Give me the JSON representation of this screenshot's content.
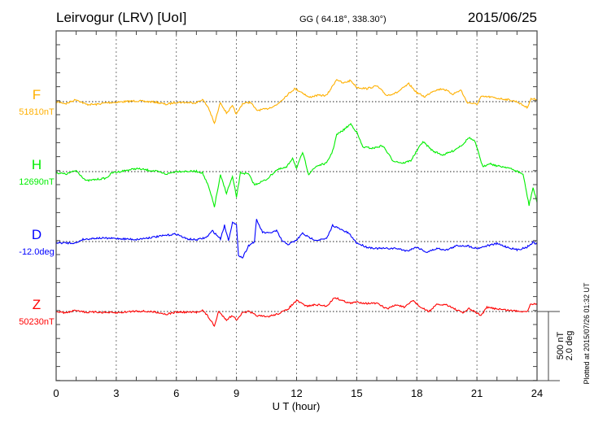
{
  "chart_data": {
    "type": "line",
    "title": "Leirvogur (LRV)  [UoI]",
    "coords": "GG ( 64.18°, 338.30°)",
    "date": "2015/06/25",
    "xlabel": "U T (hour)",
    "xlim": [
      0,
      24
    ],
    "xticks": [
      "0",
      "3",
      "6",
      "9",
      "12",
      "15",
      "18",
      "21",
      "24"
    ],
    "scale_bar": {
      "nT": 500,
      "label_nT": "500 nT",
      "label_deg": "2.0 deg"
    },
    "footer": "Plotted at 2015/07/26 01:32 UT",
    "grid": "dotted vertical every 3 h, dotted baseline per series",
    "series": [
      {
        "name": "F",
        "baseline_label": "51810nT",
        "unit": "nT",
        "color": "#ffb000",
        "points": [
          [
            0,
            0
          ],
          [
            0.5,
            -14
          ],
          [
            1,
            16
          ],
          [
            1.5,
            -20
          ],
          [
            2,
            -20
          ],
          [
            2.5,
            -8
          ],
          [
            3,
            -4
          ],
          [
            4,
            6
          ],
          [
            5,
            -4
          ],
          [
            5.5,
            -20
          ],
          [
            6,
            -4
          ],
          [
            7,
            -8
          ],
          [
            7.3,
            16
          ],
          [
            7.6,
            -43
          ],
          [
            7.9,
            -160
          ],
          [
            8.2,
            -4
          ],
          [
            8.5,
            -82
          ],
          [
            8.8,
            -33
          ],
          [
            9,
            -92
          ],
          [
            9.3,
            -14
          ],
          [
            9.7,
            -4
          ],
          [
            10,
            -63
          ],
          [
            10.5,
            -53
          ],
          [
            11,
            -24
          ],
          [
            11.5,
            45
          ],
          [
            11.9,
            94
          ],
          [
            12.3,
            65
          ],
          [
            12.6,
            31
          ],
          [
            13,
            45
          ],
          [
            13.5,
            45
          ],
          [
            13.8,
            114
          ],
          [
            14,
            163
          ],
          [
            14.3,
            133
          ],
          [
            14.7,
            153
          ],
          [
            15,
            104
          ],
          [
            15.5,
            94
          ],
          [
            16,
            114
          ],
          [
            16.5,
            45
          ],
          [
            17,
            65
          ],
          [
            17.6,
            129
          ],
          [
            18,
            65
          ],
          [
            18.4,
            35
          ],
          [
            18.8,
            78
          ],
          [
            19.3,
            94
          ],
          [
            19.8,
            55
          ],
          [
            20.2,
            84
          ],
          [
            20.5,
            -4
          ],
          [
            21,
            -20
          ],
          [
            21.2,
            35
          ],
          [
            21.6,
            35
          ],
          [
            22,
            25
          ],
          [
            22.5,
            16
          ],
          [
            23,
            0
          ],
          [
            23.5,
            -43
          ],
          [
            23.7,
            20
          ],
          [
            24,
            16
          ]
        ]
      },
      {
        "name": "H",
        "baseline_label": "12690nT",
        "unit": "nT",
        "color": "#00ee00",
        "points": [
          [
            0,
            -8
          ],
          [
            0.5,
            -18
          ],
          [
            1,
            8
          ],
          [
            1.5,
            -67
          ],
          [
            2,
            -57
          ],
          [
            2.5,
            -47
          ],
          [
            2.8,
            -8
          ],
          [
            3,
            -4
          ],
          [
            4,
            22
          ],
          [
            5,
            2
          ],
          [
            5.5,
            -18
          ],
          [
            6,
            2
          ],
          [
            7,
            2
          ],
          [
            7.3,
            -8
          ],
          [
            7.6,
            -106
          ],
          [
            7.9,
            -253
          ],
          [
            8.2,
            -27
          ],
          [
            8.5,
            -155
          ],
          [
            8.8,
            -37
          ],
          [
            9,
            -184
          ],
          [
            9.2,
            -8
          ],
          [
            9.6,
            -18
          ],
          [
            9.9,
            -96
          ],
          [
            10.5,
            -57
          ],
          [
            11,
            12
          ],
          [
            11.5,
            31
          ],
          [
            11.8,
            100
          ],
          [
            12,
            22
          ],
          [
            12.3,
            139
          ],
          [
            12.6,
            -18
          ],
          [
            13,
            41
          ],
          [
            13.5,
            61
          ],
          [
            13.8,
            149
          ],
          [
            14,
            267
          ],
          [
            14.3,
            296
          ],
          [
            14.7,
            345
          ],
          [
            15,
            286
          ],
          [
            15.3,
            178
          ],
          [
            15.8,
            169
          ],
          [
            16.3,
            188
          ],
          [
            16.8,
            80
          ],
          [
            17.3,
            61
          ],
          [
            17.7,
            80
          ],
          [
            18,
            149
          ],
          [
            18.3,
            218
          ],
          [
            18.8,
            149
          ],
          [
            19.3,
            120
          ],
          [
            19.8,
            149
          ],
          [
            20.3,
            198
          ],
          [
            20.6,
            247
          ],
          [
            20.9,
            218
          ],
          [
            21.3,
            31
          ],
          [
            21.6,
            61
          ],
          [
            22,
            41
          ],
          [
            22.5,
            31
          ],
          [
            23,
            2
          ],
          [
            23.3,
            -18
          ],
          [
            23.6,
            -243
          ],
          [
            23.8,
            -116
          ],
          [
            24,
            -223
          ]
        ]
      },
      {
        "name": "D",
        "baseline_label": "-12.0deg",
        "unit": "deg",
        "color": "#0000ff",
        "points": [
          [
            0,
            -0.04
          ],
          [
            1,
            -0.04
          ],
          [
            1.3,
            0.06
          ],
          [
            2,
            0.1
          ],
          [
            3,
            0.09
          ],
          [
            4,
            0.06
          ],
          [
            5,
            0.14
          ],
          [
            6,
            0.22
          ],
          [
            6.5,
            0.08
          ],
          [
            7,
            0.05
          ],
          [
            7.5,
            0.12
          ],
          [
            7.8,
            0.31
          ],
          [
            8.2,
            0.08
          ],
          [
            8.4,
            0.47
          ],
          [
            8.6,
            0.04
          ],
          [
            8.8,
            0.55
          ],
          [
            9,
            0.47
          ],
          [
            9.1,
            -0.39
          ],
          [
            9.3,
            -0.47
          ],
          [
            9.6,
            -0.12
          ],
          [
            9.9,
            0
          ],
          [
            10,
            0.63
          ],
          [
            10.3,
            0.27
          ],
          [
            10.6,
            0.24
          ],
          [
            11,
            0.31
          ],
          [
            11.3,
            0
          ],
          [
            11.6,
            -0.08
          ],
          [
            12,
            0.04
          ],
          [
            12.3,
            0.24
          ],
          [
            12.6,
            0.12
          ],
          [
            13,
            0.04
          ],
          [
            13.5,
            0.08
          ],
          [
            13.8,
            0.47
          ],
          [
            14.2,
            0.35
          ],
          [
            14.6,
            0.24
          ],
          [
            15,
            -0.04
          ],
          [
            15.5,
            -0.16
          ],
          [
            16,
            -0.2
          ],
          [
            16.5,
            -0.2
          ],
          [
            17,
            -0.2
          ],
          [
            17.5,
            -0.27
          ],
          [
            18,
            -0.16
          ],
          [
            18.5,
            -0.31
          ],
          [
            19,
            -0.2
          ],
          [
            19.5,
            -0.24
          ],
          [
            20,
            -0.12
          ],
          [
            20.5,
            -0.12
          ],
          [
            21,
            -0.2
          ],
          [
            21.5,
            -0.12
          ],
          [
            22,
            -0.06
          ],
          [
            22.5,
            -0.16
          ],
          [
            23,
            -0.24
          ],
          [
            23.5,
            -0.16
          ],
          [
            23.8,
            -0.02
          ],
          [
            24,
            -0.08
          ]
        ]
      },
      {
        "name": "Z",
        "baseline_label": "50230nT",
        "unit": "nT",
        "color": "#ff0000",
        "points": [
          [
            0,
            0
          ],
          [
            0.5,
            -10
          ],
          [
            1,
            10
          ],
          [
            1.5,
            -6
          ],
          [
            2,
            -4
          ],
          [
            3,
            -10
          ],
          [
            4,
            4
          ],
          [
            5,
            -4
          ],
          [
            5.5,
            -20
          ],
          [
            6,
            -4
          ],
          [
            7,
            -6
          ],
          [
            7.3,
            10
          ],
          [
            7.6,
            -39
          ],
          [
            7.9,
            -108
          ],
          [
            8.1,
            0
          ],
          [
            8.5,
            -59
          ],
          [
            8.8,
            -29
          ],
          [
            9,
            -59
          ],
          [
            9.3,
            -10
          ],
          [
            9.6,
            0
          ],
          [
            10,
            -29
          ],
          [
            10.5,
            -39
          ],
          [
            11,
            -20
          ],
          [
            11.5,
            10
          ],
          [
            12,
            78
          ],
          [
            12.5,
            39
          ],
          [
            13,
            49
          ],
          [
            13.5,
            39
          ],
          [
            13.9,
            102
          ],
          [
            14.3,
            78
          ],
          [
            14.7,
            59
          ],
          [
            15,
            69
          ],
          [
            15.5,
            59
          ],
          [
            16,
            59
          ],
          [
            16.5,
            20
          ],
          [
            17,
            49
          ],
          [
            17.4,
            29
          ],
          [
            17.8,
            82
          ],
          [
            18.2,
            29
          ],
          [
            18.6,
            0
          ],
          [
            19,
            49
          ],
          [
            19.5,
            49
          ],
          [
            20,
            10
          ],
          [
            20.3,
            -10
          ],
          [
            20.6,
            20
          ],
          [
            21,
            -10
          ],
          [
            21.2,
            -29
          ],
          [
            21.5,
            29
          ],
          [
            22,
            20
          ],
          [
            22.5,
            10
          ],
          [
            23,
            4
          ],
          [
            23.5,
            0
          ],
          [
            23.7,
            59
          ],
          [
            24,
            49
          ]
        ]
      }
    ]
  }
}
